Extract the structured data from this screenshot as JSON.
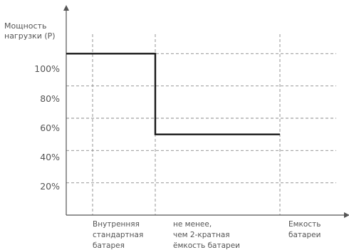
{
  "chart_data": {
    "type": "line",
    "ylabel": [
      "Мощность",
      "нагрузки (P)"
    ],
    "y_ticks": [
      "20%",
      "40%",
      "60%",
      "80%",
      "100%"
    ],
    "y_tick_values": [
      20,
      40,
      60,
      80,
      100
    ],
    "ylim": [
      0,
      120
    ],
    "grid": true,
    "x_categories": [
      {
        "name": "internal",
        "lines": [
          "Внутренняя",
          "стандартная",
          "батарея"
        ]
      },
      {
        "name": "double",
        "lines": [
          "не менее,",
          "чем 2-кратная",
          "ёмкость батареи"
        ]
      },
      {
        "name": "capacity",
        "lines": [
          "Емкость",
          "батареи"
        ]
      }
    ],
    "series": [
      {
        "points": [
          {
            "x": "start",
            "y": 100
          },
          {
            "x": "double",
            "y": 100
          },
          {
            "x": "double",
            "y": 50
          },
          {
            "x": "capacity",
            "y": 50
          }
        ]
      }
    ]
  }
}
